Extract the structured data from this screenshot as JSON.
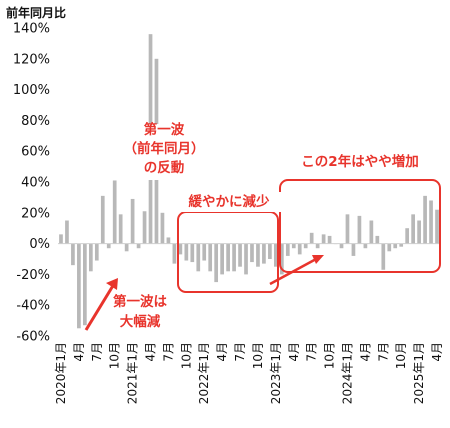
{
  "chart_data": {
    "type": "bar",
    "ylabel": "前年同月比",
    "ylim": [
      -60,
      140
    ],
    "yticks": [
      "-60%",
      "-40%",
      "-20%",
      "0%",
      "20%",
      "40%",
      "60%",
      "80%",
      "100%",
      "120%",
      "140%"
    ],
    "grid": false,
    "bar_color": "#b8b8b8",
    "annotation_color": "#e8342c",
    "x_labels": [
      {
        "index": 0,
        "label": "2020年1月"
      },
      {
        "index": 3,
        "label": "4月"
      },
      {
        "index": 6,
        "label": "7月"
      },
      {
        "index": 9,
        "label": "10月"
      },
      {
        "index": 12,
        "label": "2021年1月"
      },
      {
        "index": 15,
        "label": "4月"
      },
      {
        "index": 18,
        "label": "7月"
      },
      {
        "index": 21,
        "label": "10月"
      },
      {
        "index": 24,
        "label": "2022年1月"
      },
      {
        "index": 27,
        "label": "4月"
      },
      {
        "index": 30,
        "label": "7月"
      },
      {
        "index": 33,
        "label": "10月"
      },
      {
        "index": 36,
        "label": "2023年1月"
      },
      {
        "index": 39,
        "label": "4月"
      },
      {
        "index": 42,
        "label": "7月"
      },
      {
        "index": 45,
        "label": "10月"
      },
      {
        "index": 48,
        "label": "2024年1月"
      },
      {
        "index": 51,
        "label": "4月"
      },
      {
        "index": 54,
        "label": "7月"
      },
      {
        "index": 57,
        "label": "10月"
      },
      {
        "index": 60,
        "label": "2025年1月"
      },
      {
        "index": 63,
        "label": "4月"
      }
    ],
    "series": [
      {
        "values": [
          6,
          15,
          -14,
          -55,
          -53,
          -18,
          -11,
          31,
          -3,
          41,
          19,
          -5,
          29,
          -3,
          21,
          136,
          120,
          20,
          4,
          -13,
          -7,
          -11,
          -12,
          -18,
          -11,
          -18,
          -25,
          -20,
          -18,
          -18,
          -15,
          -20,
          -12,
          -15,
          -13,
          -10,
          -15,
          -20,
          -8,
          -3,
          -7,
          -3,
          7,
          -3,
          6,
          5,
          0,
          -3,
          19,
          -8,
          18,
          -3,
          15,
          5,
          -17,
          -5,
          -3,
          -2,
          10,
          19,
          15,
          31,
          28,
          22
        ]
      }
    ],
    "annotations": [
      {
        "id": "first-wave-rebound",
        "lines": [
          "第一波",
          "（前年同月）",
          "の反動"
        ]
      },
      {
        "id": "first-wave-drop",
        "lines": [
          "第一波は",
          "大幅減"
        ]
      },
      {
        "id": "gradual-decline",
        "lines": [
          "緩やかに減少"
        ]
      },
      {
        "id": "two-year-rise",
        "lines": [
          "この2年はやや増加"
        ]
      }
    ]
  }
}
